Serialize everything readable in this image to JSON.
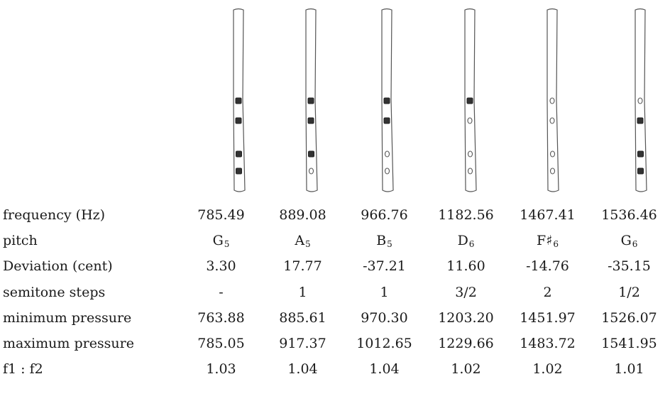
{
  "flutes": [
    {
      "holes": [
        "closed",
        "closed",
        "closed",
        "closed"
      ]
    },
    {
      "holes": [
        "closed",
        "closed",
        "closed",
        "open"
      ]
    },
    {
      "holes": [
        "closed",
        "closed",
        "open",
        "open"
      ]
    },
    {
      "holes": [
        "closed",
        "open",
        "open",
        "open"
      ]
    },
    {
      "holes": [
        "open",
        "open",
        "open",
        "open"
      ]
    },
    {
      "holes": [
        "open",
        "closed",
        "closed",
        "closed"
      ]
    }
  ],
  "table": {
    "rows": [
      {
        "label": "frequency (Hz)",
        "values": [
          "785.49",
          "889.08",
          "966.76",
          "1182.56",
          "1467.41",
          "1536.46"
        ]
      },
      {
        "label": "pitch",
        "values": [
          {
            "note": "G",
            "octave": "5"
          },
          {
            "note": "A",
            "octave": "5"
          },
          {
            "note": "B",
            "octave": "5"
          },
          {
            "note": "D",
            "octave": "6"
          },
          {
            "note": "F♯",
            "octave": "6"
          },
          {
            "note": "G",
            "octave": "6"
          }
        ]
      },
      {
        "label": "Deviation (cent)",
        "values": [
          "3.30",
          "17.77",
          "-37.21",
          "11.60",
          "-14.76",
          "-35.15"
        ]
      },
      {
        "label": "semitone steps",
        "values": [
          "-",
          "1",
          "1",
          "3/2",
          "2",
          "1/2"
        ]
      },
      {
        "label": "minimum pressure",
        "values": [
          "763.88",
          "885.61",
          "970.30",
          "1203.20",
          "1451.97",
          "1526.07"
        ]
      },
      {
        "label": "maximum pressure",
        "values": [
          "785.05",
          "917.37",
          "1012.65",
          "1229.66",
          "1483.72",
          "1541.95"
        ]
      },
      {
        "label": "f1 : f2",
        "values": [
          "1.03",
          "1.04",
          "1.04",
          "1.02",
          "1.02",
          "1.01"
        ]
      }
    ]
  }
}
